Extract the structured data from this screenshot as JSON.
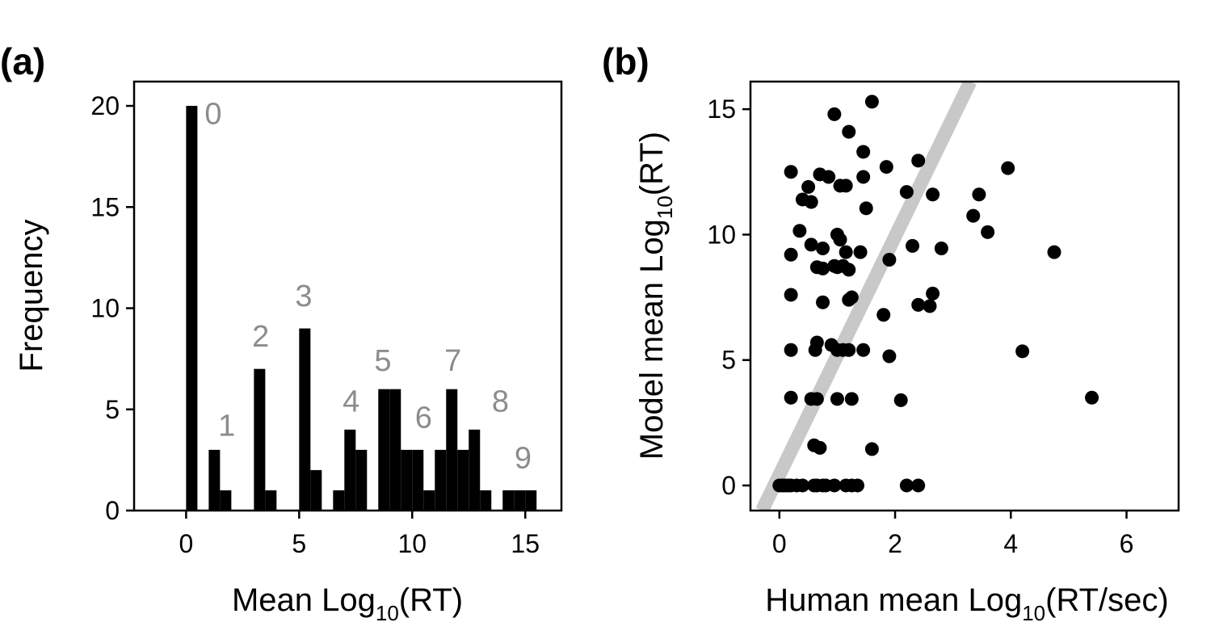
{
  "chart_data": [
    {
      "type": "bar",
      "panel_label": "(a)",
      "xlabel_main": "Mean Log",
      "xlabel_sub": "10",
      "xlabel_rest": "(RT)",
      "ylabel": "Frequency",
      "xlim": [
        -2.3,
        16.6
      ],
      "ylim": [
        0,
        21.2
      ],
      "xticks": [
        "0",
        "5",
        "10",
        "15"
      ],
      "yticks": [
        "0",
        "5",
        "10",
        "15",
        "20"
      ],
      "bin_width": 0.5,
      "bars": [
        {
          "x": 0.25,
          "value": 20
        },
        {
          "x": 1.25,
          "value": 3
        },
        {
          "x": 1.75,
          "value": 1
        },
        {
          "x": 3.25,
          "value": 7
        },
        {
          "x": 3.75,
          "value": 1
        },
        {
          "x": 5.25,
          "value": 9
        },
        {
          "x": 5.75,
          "value": 2
        },
        {
          "x": 6.75,
          "value": 1
        },
        {
          "x": 7.25,
          "value": 4
        },
        {
          "x": 7.75,
          "value": 3
        },
        {
          "x": 8.75,
          "value": 6
        },
        {
          "x": 9.25,
          "value": 6
        },
        {
          "x": 9.75,
          "value": 3
        },
        {
          "x": 10.25,
          "value": 3
        },
        {
          "x": 10.75,
          "value": 1
        },
        {
          "x": 11.25,
          "value": 3
        },
        {
          "x": 11.75,
          "value": 6
        },
        {
          "x": 12.25,
          "value": 3
        },
        {
          "x": 12.75,
          "value": 4
        },
        {
          "x": 13.25,
          "value": 1
        },
        {
          "x": 14.25,
          "value": 1
        },
        {
          "x": 14.75,
          "value": 1
        },
        {
          "x": 15.25,
          "value": 1
        }
      ],
      "annotations": [
        {
          "text": "0",
          "x": 1.2,
          "y": 19.1
        },
        {
          "text": "1",
          "x": 1.8,
          "y": 3.7
        },
        {
          "text": "2",
          "x": 3.3,
          "y": 8.1
        },
        {
          "text": "3",
          "x": 5.2,
          "y": 10.1
        },
        {
          "text": "4",
          "x": 7.3,
          "y": 4.9
        },
        {
          "text": "5",
          "x": 8.7,
          "y": 6.9
        },
        {
          "text": "6",
          "x": 10.5,
          "y": 4.1
        },
        {
          "text": "7",
          "x": 11.8,
          "y": 6.9
        },
        {
          "text": "8",
          "x": 13.9,
          "y": 4.9
        },
        {
          "text": "9",
          "x": 14.9,
          "y": 2.1
        }
      ]
    },
    {
      "type": "scatter",
      "panel_label": "(b)",
      "xlabel_main": "Human mean Log",
      "xlabel_sub": "10",
      "xlabel_rest": "(RT/sec)",
      "ylabel_main": "Model mean Log",
      "ylabel_sub": "10",
      "ylabel_rest": "(RT)",
      "xlim": [
        -0.5,
        6.9
      ],
      "ylim": [
        -1.0,
        16.1
      ],
      "xticks": [
        "0",
        "2",
        "4",
        "6"
      ],
      "yticks": [
        "0",
        "5",
        "10",
        "15"
      ],
      "reference_line": {
        "x": [
          -0.3,
          3.3
        ],
        "y": [
          -1.0,
          16.1
        ],
        "color": "#c8c8c8"
      },
      "points": [
        [
          0.0,
          0.0
        ],
        [
          0.05,
          0.0
        ],
        [
          0.1,
          0.0
        ],
        [
          0.15,
          0.0
        ],
        [
          0.2,
          0.0
        ],
        [
          0.3,
          0.0
        ],
        [
          0.4,
          0.0
        ],
        [
          0.6,
          0.0
        ],
        [
          0.65,
          0.0
        ],
        [
          0.75,
          0.0
        ],
        [
          0.8,
          0.0
        ],
        [
          0.95,
          0.0
        ],
        [
          1.15,
          0.0
        ],
        [
          1.25,
          0.0
        ],
        [
          1.35,
          0.0
        ],
        [
          2.2,
          0.0
        ],
        [
          2.4,
          0.0
        ],
        [
          0.6,
          1.6
        ],
        [
          0.7,
          1.5
        ],
        [
          1.6,
          1.45
        ],
        [
          0.2,
          3.5
        ],
        [
          0.55,
          3.45
        ],
        [
          0.65,
          3.45
        ],
        [
          1.0,
          3.45
        ],
        [
          1.25,
          3.45
        ],
        [
          2.1,
          3.4
        ],
        [
          5.4,
          3.5
        ],
        [
          0.2,
          5.4
        ],
        [
          0.62,
          5.4
        ],
        [
          0.65,
          5.7
        ],
        [
          0.9,
          5.6
        ],
        [
          1.0,
          5.4
        ],
        [
          1.1,
          5.4
        ],
        [
          1.2,
          5.4
        ],
        [
          1.45,
          5.4
        ],
        [
          1.9,
          5.15
        ],
        [
          4.2,
          5.35
        ],
        [
          0.2,
          7.6
        ],
        [
          0.75,
          7.3
        ],
        [
          1.2,
          7.4
        ],
        [
          1.25,
          7.5
        ],
        [
          1.8,
          6.8
        ],
        [
          2.4,
          7.2
        ],
        [
          2.6,
          7.15
        ],
        [
          2.65,
          7.65
        ],
        [
          0.2,
          9.2
        ],
        [
          0.35,
          10.15
        ],
        [
          0.55,
          9.6
        ],
        [
          0.65,
          8.7
        ],
        [
          0.75,
          9.45
        ],
        [
          0.75,
          8.65
        ],
        [
          0.95,
          8.75
        ],
        [
          1.0,
          8.7
        ],
        [
          1.0,
          10.0
        ],
        [
          1.05,
          9.8
        ],
        [
          1.1,
          8.75
        ],
        [
          1.15,
          9.3
        ],
        [
          1.2,
          8.6
        ],
        [
          1.4,
          9.3
        ],
        [
          1.9,
          9.0
        ],
        [
          2.3,
          9.55
        ],
        [
          2.8,
          9.45
        ],
        [
          3.35,
          10.75
        ],
        [
          3.6,
          10.1
        ],
        [
          4.75,
          9.3
        ],
        [
          0.2,
          12.5
        ],
        [
          0.4,
          11.4
        ],
        [
          0.5,
          11.9
        ],
        [
          0.55,
          11.3
        ],
        [
          0.7,
          12.4
        ],
        [
          0.85,
          12.3
        ],
        [
          1.05,
          11.95
        ],
        [
          1.15,
          11.95
        ],
        [
          1.5,
          11.05
        ],
        [
          1.45,
          12.3
        ],
        [
          2.2,
          11.7
        ],
        [
          2.65,
          11.6
        ],
        [
          3.45,
          11.6
        ],
        [
          3.95,
          12.65
        ],
        [
          1.85,
          12.7
        ],
        [
          2.4,
          12.95
        ],
        [
          1.45,
          13.3
        ],
        [
          0.95,
          14.8
        ],
        [
          1.2,
          14.1
        ],
        [
          1.6,
          15.3
        ]
      ]
    }
  ]
}
